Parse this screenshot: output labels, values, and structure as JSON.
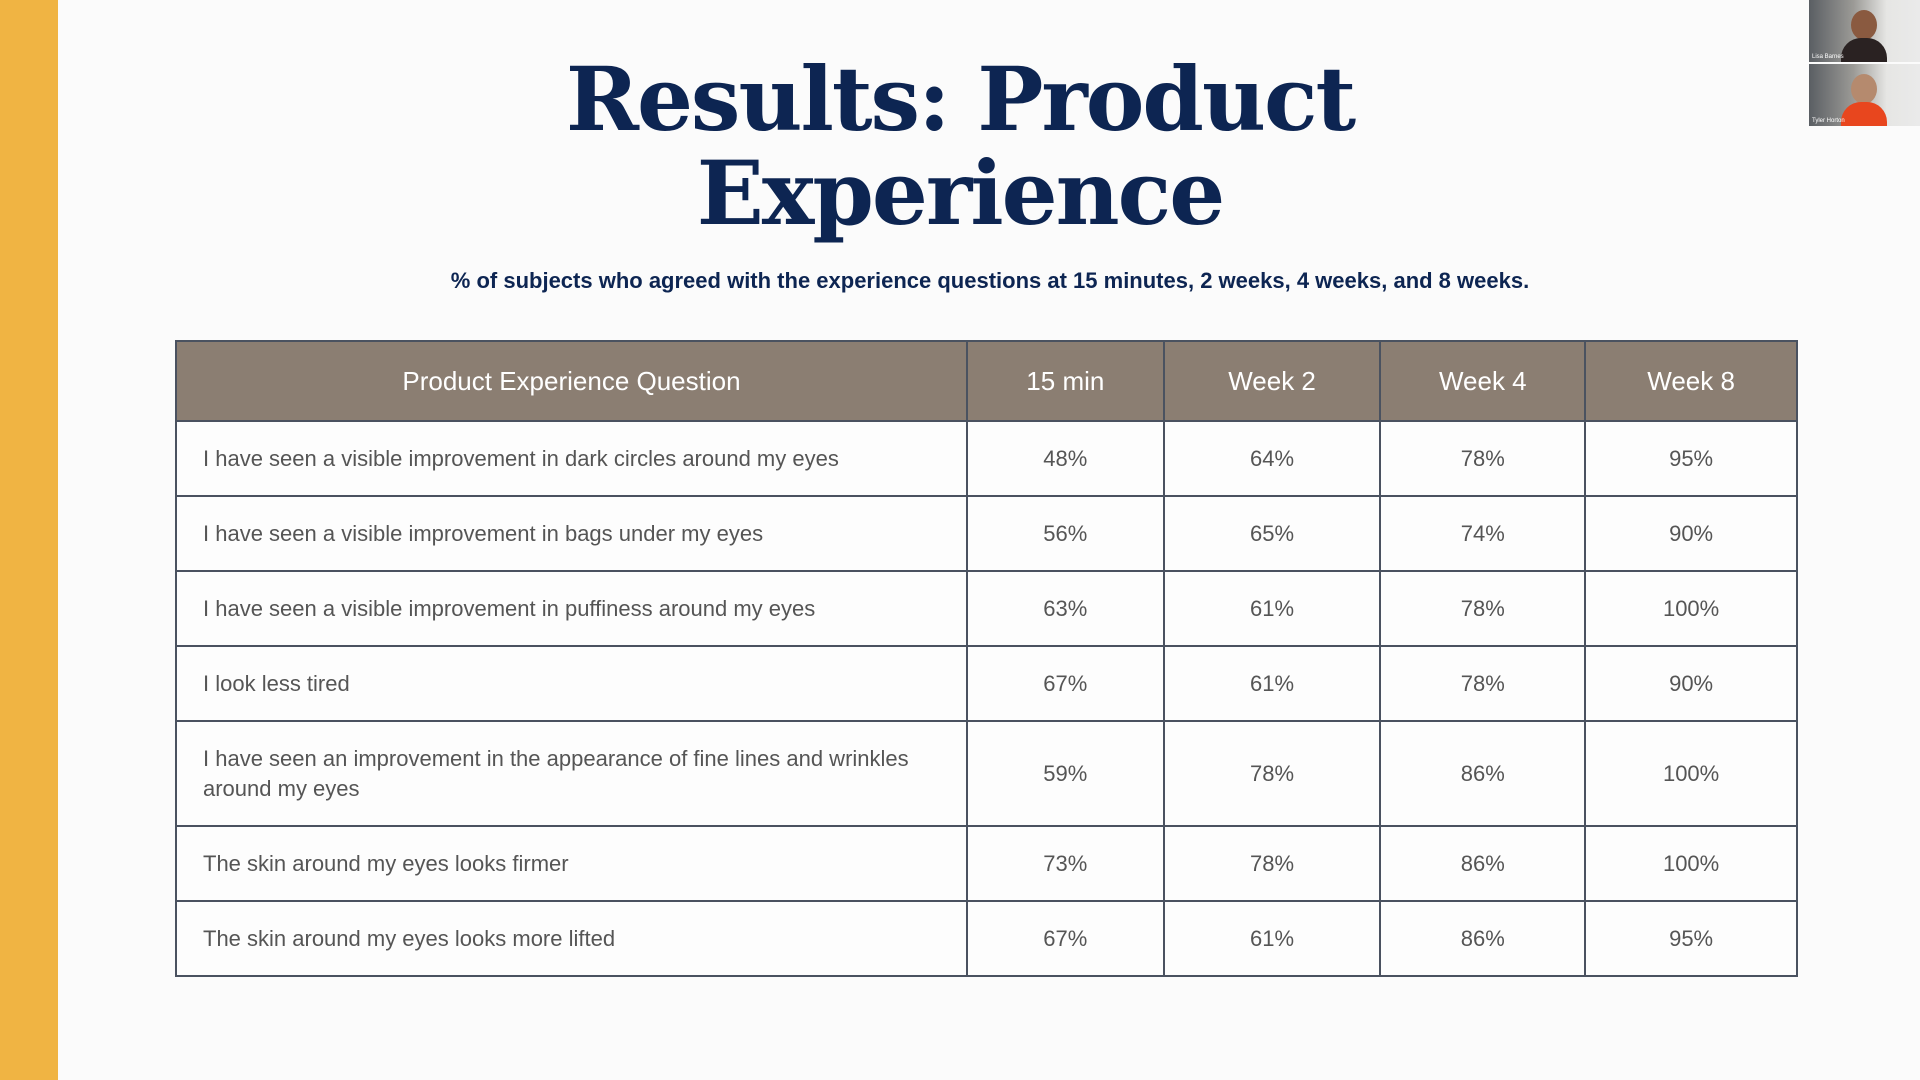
{
  "slide": {
    "title_line1": "Results: Product",
    "title_line2": "Experience",
    "subtitle": "% of subjects who agreed with the experience questions at 15 minutes, 2 weeks, 4 weeks, and 8 weeks.",
    "accent_color": "#f0b443",
    "title_color": "#0d2552",
    "header_color": "#8b7e72"
  },
  "table": {
    "headers": [
      "Product Experience Question",
      "15 min",
      "Week 2",
      "Week 4",
      "Week 8"
    ],
    "rows": [
      {
        "question": "I have seen a visible improvement in dark circles around my eyes",
        "values": [
          "48%",
          "64%",
          "78%",
          "95%"
        ]
      },
      {
        "question": "I have seen a visible improvement in bags under my eyes",
        "values": [
          "56%",
          "65%",
          "74%",
          "90%"
        ]
      },
      {
        "question": "I have seen a visible improvement in puffiness around my eyes",
        "values": [
          "63%",
          "61%",
          "78%",
          "100%"
        ]
      },
      {
        "question": "I look less tired",
        "values": [
          "67%",
          "61%",
          "78%",
          "90%"
        ]
      },
      {
        "question": "I have seen an improvement in the appearance of fine lines and wrinkles around my eyes",
        "values": [
          "59%",
          "78%",
          "86%",
          "100%"
        ]
      },
      {
        "question": "The skin around my eyes looks firmer",
        "values": [
          "73%",
          "78%",
          "86%",
          "100%"
        ]
      },
      {
        "question": "The skin around my eyes looks more lifted",
        "values": [
          "67%",
          "61%",
          "86%",
          "95%"
        ]
      }
    ]
  },
  "participants": [
    {
      "name": "Lisa Barnes"
    },
    {
      "name": "Tyler Horton"
    }
  ]
}
